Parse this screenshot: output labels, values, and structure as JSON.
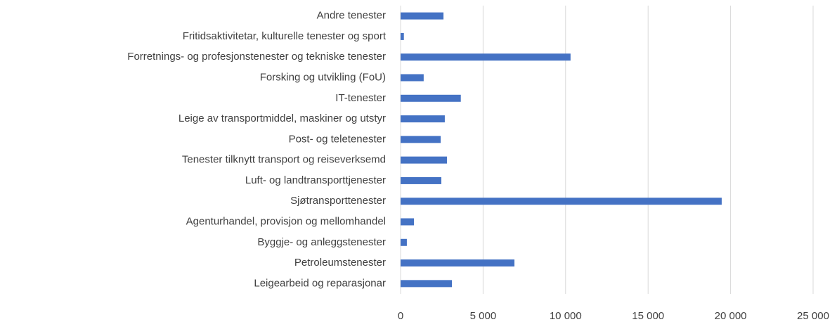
{
  "chart_data": {
    "type": "bar",
    "orientation": "horizontal",
    "categories": [
      "Andre tenester",
      "Fritidsaktivitetar, kulturelle tenester og sport",
      "Forretnings- og profesjonstenester og tekniske tenester",
      "Forsking og utvikling (FoU)",
      "IT-tenester",
      "Leige av transportmiddel, maskiner og utstyr",
      "Post- og teletenester",
      "Tenester tilknytt transport og reiseverksemd",
      "Luft- og landtransporttjenester",
      "Sjøtransporttenester",
      "Agenturhandel, provisjon og mellomhandel",
      "Byggje- og anleggstenester",
      "Petroleumstenester",
      "Leigearbeid og reparasjonar"
    ],
    "values": [
      2600,
      200,
      10300,
      1400,
      3650,
      2680,
      2430,
      2810,
      2470,
      19460,
      810,
      380,
      6900,
      3110
    ],
    "color": "#4472c4",
    "xlim": [
      0,
      25000
    ],
    "xticks": [
      0,
      {
        "value": 5000,
        "label": "5 000"
      },
      {
        "value": 10000,
        "label": "10 000"
      },
      {
        "value": 15000,
        "label": "15 000"
      },
      {
        "value": 20000,
        "label": "20 000"
      },
      {
        "value": 25000,
        "label": "25 000"
      }
    ],
    "grid": true
  }
}
